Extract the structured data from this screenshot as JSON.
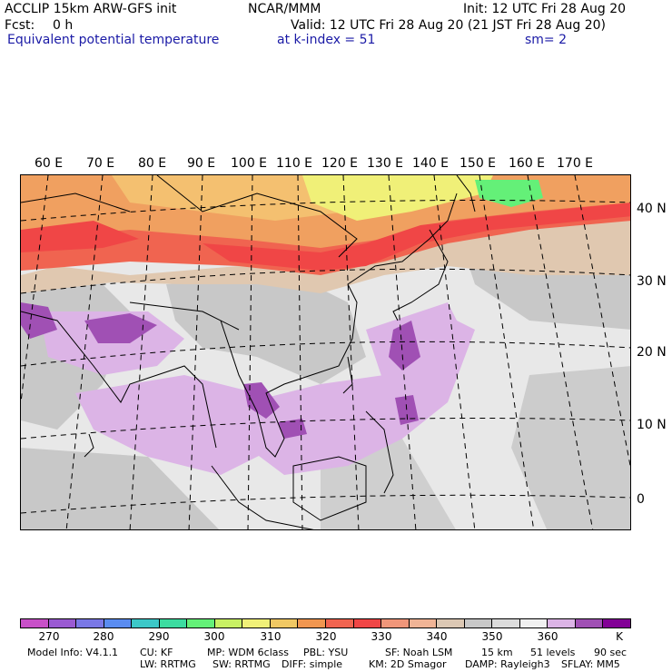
{
  "header": {
    "model": "ACCLIP 15km ARW-GFS init",
    "center": "NCAR/MMM",
    "init": "Init: 12 UTC Fri 28 Aug 20",
    "fcst_label": "Fcst:",
    "fcst_value": "0 h",
    "valid": "Valid: 12 UTC Fri 28 Aug 20 (21 JST Fri 28 Aug 20)",
    "field": "Equivalent potential temperature",
    "level": "at k-index =  51",
    "smooth": "sm= 2"
  },
  "map": {
    "lon_labels": [
      "60 E",
      "70 E",
      "80 E",
      "90 E",
      "100 E",
      "110 E",
      "120 E",
      "130 E",
      "140 E",
      "150 E",
      "160 E",
      "170 E"
    ],
    "lat_labels": [
      "40 N",
      "30 N",
      "20 N",
      "10 N",
      "0"
    ]
  },
  "colorbar": {
    "colors": [
      "#c850c8",
      "#9a5ad2",
      "#7a78e6",
      "#5a8cf0",
      "#3cc8c8",
      "#3cdca0",
      "#64f078",
      "#c8f064",
      "#f0f078",
      "#f0c864",
      "#f09650",
      "#f06450",
      "#f04646",
      "#f0967a",
      "#f0b496",
      "#dcc8b4",
      "#c8c8c8",
      "#dcdcdc",
      "#f0f0f0",
      "#dcb4e6",
      "#a050b4",
      "#820096"
    ],
    "ticks": [
      "270",
      "280",
      "290",
      "300",
      "310",
      "320",
      "330",
      "340",
      "350",
      "360"
    ],
    "unit": "K"
  },
  "footer": {
    "line1": [
      "Model Info: V4.1.1",
      "CU: KF",
      "MP: WDM 6class",
      "PBL: YSU",
      "SF: Noah LSM",
      "15 km",
      "51 levels",
      "90 sec"
    ],
    "line2": [
      "LW: RRTMG",
      "SW: RRTMG",
      "DIFF: simple",
      "KM: 2D Smagor",
      "DAMP: Rayleigh3",
      "SFLAY: MM5"
    ]
  }
}
